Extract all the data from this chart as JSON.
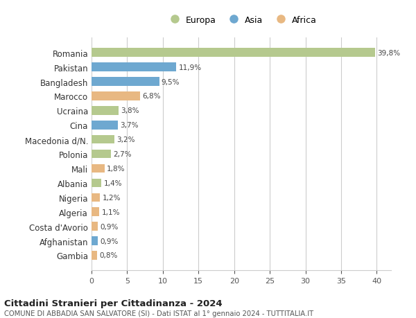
{
  "categories": [
    "Romania",
    "Pakistan",
    "Bangladesh",
    "Marocco",
    "Ucraina",
    "Cina",
    "Macedonia d/N.",
    "Polonia",
    "Mali",
    "Albania",
    "Nigeria",
    "Algeria",
    "Costa d'Avorio",
    "Afghanistan",
    "Gambia"
  ],
  "values": [
    39.8,
    11.9,
    9.5,
    6.8,
    3.8,
    3.7,
    3.2,
    2.7,
    1.8,
    1.4,
    1.2,
    1.1,
    0.9,
    0.9,
    0.8
  ],
  "labels": [
    "39,8%",
    "11,9%",
    "9,5%",
    "6,8%",
    "3,8%",
    "3,7%",
    "3,2%",
    "2,7%",
    "1,8%",
    "1,4%",
    "1,2%",
    "1,1%",
    "0,9%",
    "0,9%",
    "0,8%"
  ],
  "continents": [
    "Europa",
    "Asia",
    "Asia",
    "Africa",
    "Europa",
    "Asia",
    "Europa",
    "Europa",
    "Africa",
    "Europa",
    "Africa",
    "Africa",
    "Africa",
    "Asia",
    "Africa"
  ],
  "colors": {
    "Europa": "#b5c98e",
    "Asia": "#6ea8d0",
    "Africa": "#e8b882"
  },
  "xlim": [
    0,
    42
  ],
  "xticks": [
    0,
    5,
    10,
    15,
    20,
    25,
    30,
    35,
    40
  ],
  "title": "Cittadini Stranieri per Cittadinanza - 2024",
  "subtitle": "COMUNE DI ABBADIA SAN SALVATORE (SI) - Dati ISTAT al 1° gennaio 2024 - TUTTITALIA.IT",
  "background_color": "#ffffff",
  "grid_color": "#cccccc"
}
